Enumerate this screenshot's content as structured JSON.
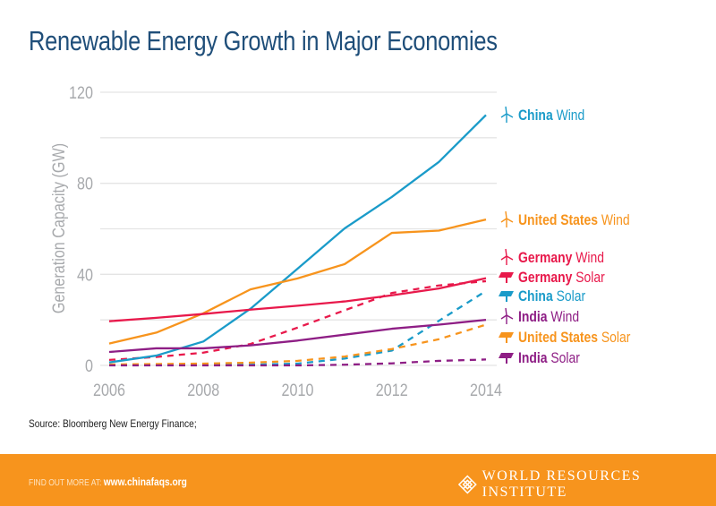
{
  "title": "Renewable Energy Growth in Major Economies",
  "source": "Source: Bloomberg New Energy Finance;",
  "footer": {
    "find_label": "FIND OUT MORE AT:",
    "url": "www.chinafaqs.org",
    "org": "WORLD RESOURCES INSTITUTE"
  },
  "colors": {
    "china": "#1a9bc9",
    "us": "#f7941d",
    "germany": "#e8194b",
    "india": "#8e1e85",
    "title": "#1f4e79",
    "footer": "#f7941d"
  },
  "chart_data": {
    "type": "line",
    "title": "Renewable Energy Growth in Major Economies",
    "xlabel": "",
    "ylabel": "Generation Capacity (GW)",
    "x": [
      2006,
      2007,
      2008,
      2009,
      2010,
      2011,
      2012,
      2013,
      2014
    ],
    "xticks": [
      "2006",
      "2008",
      "2010",
      "2012",
      "2014"
    ],
    "yticks": [
      "0",
      "40",
      "80",
      "120"
    ],
    "ylim": [
      0,
      120
    ],
    "xlim": [
      2006,
      2014
    ],
    "grid": true,
    "legend": "right, labels at line ends",
    "series": [
      {
        "country": "China",
        "type": "Wind",
        "color": "#1a9bc9",
        "dash": false,
        "icon": "wind-turbine-icon",
        "values": [
          1.3,
          4.3,
          10.5,
          24.9,
          42.5,
          60.2,
          74,
          89.4,
          110
        ]
      },
      {
        "country": "United States",
        "type": "Wind",
        "color": "#f7941d",
        "dash": false,
        "icon": "wind-turbine-icon",
        "values": [
          9.6,
          14.4,
          22.9,
          33.4,
          38.2,
          44.5,
          58.2,
          59.2,
          64.1
        ]
      },
      {
        "country": "Germany",
        "type": "Wind",
        "color": "#e8194b",
        "dash": false,
        "icon": "wind-turbine-icon",
        "values": [
          19.4,
          20.9,
          22.6,
          24.5,
          26.2,
          28.1,
          30.8,
          33.8,
          38.3
        ]
      },
      {
        "country": "Germany",
        "type": "Solar",
        "color": "#e8194b",
        "dash": true,
        "icon": "solar-panel-icon",
        "values": [
          2.4,
          3.7,
          5.6,
          9.4,
          16.6,
          24.2,
          31.8,
          35.1,
          37.0
        ]
      },
      {
        "country": "China",
        "type": "Solar",
        "color": "#1a9bc9",
        "dash": true,
        "icon": "solar-panel-icon",
        "values": [
          0.1,
          0.1,
          0.1,
          0.3,
          0.8,
          3.0,
          6.5,
          19.6,
          32.7
        ]
      },
      {
        "country": "India",
        "type": "Wind",
        "color": "#8e1e85",
        "dash": false,
        "icon": "wind-turbine-icon",
        "values": [
          5.9,
          7.5,
          7.5,
          8.8,
          10.9,
          13.5,
          16.1,
          17.9,
          20.0
        ]
      },
      {
        "country": "United States",
        "type": "Solar",
        "color": "#f7941d",
        "dash": true,
        "icon": "solar-panel-icon",
        "values": [
          0.4,
          0.6,
          0.8,
          1.2,
          2.0,
          3.9,
          7.2,
          11.5,
          17.9
        ]
      },
      {
        "country": "India",
        "type": "Solar",
        "color": "#8e1e85",
        "dash": true,
        "icon": "solar-panel-icon",
        "values": [
          0,
          0,
          0,
          0,
          0,
          0.3,
          0.9,
          2.0,
          2.6
        ]
      }
    ]
  }
}
